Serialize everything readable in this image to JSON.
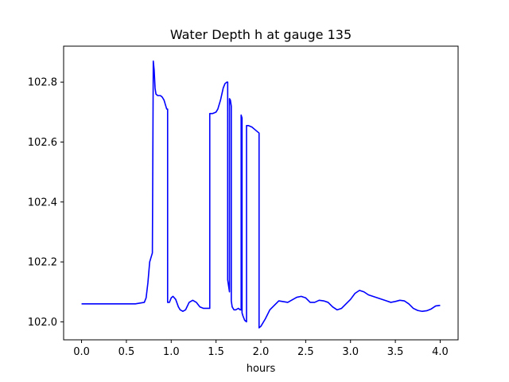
{
  "chart_data": {
    "type": "line",
    "title": "Water Depth h at gauge 135",
    "xlabel": "hours",
    "ylabel": "",
    "xlim": [
      -0.2,
      4.2
    ],
    "ylim": [
      101.94,
      102.92
    ],
    "xticks": [
      0.0,
      0.5,
      1.0,
      1.5,
      2.0,
      2.5,
      3.0,
      3.5,
      4.0
    ],
    "xtick_labels": [
      "0.0",
      "0.5",
      "1.0",
      "1.5",
      "2.0",
      "2.5",
      "3.0",
      "3.5",
      "4.0"
    ],
    "yticks": [
      102.0,
      102.2,
      102.4,
      102.6,
      102.8
    ],
    "ytick_labels": [
      "102.0",
      "102.2",
      "102.4",
      "102.6",
      "102.8"
    ],
    "grid": false,
    "series": [
      {
        "color": "#0000ff",
        "x": [
          0.0,
          0.2,
          0.4,
          0.6,
          0.7,
          0.72,
          0.74,
          0.76,
          0.78,
          0.79,
          0.8,
          0.8,
          0.81,
          0.82,
          0.83,
          0.85,
          0.88,
          0.9,
          0.92,
          0.94,
          0.95,
          0.96,
          0.96,
          0.97,
          0.98,
          1.0,
          1.02,
          1.05,
          1.08,
          1.1,
          1.13,
          1.16,
          1.2,
          1.24,
          1.28,
          1.32,
          1.36,
          1.4,
          1.43,
          1.43,
          1.46,
          1.5,
          1.52,
          1.55,
          1.58,
          1.6,
          1.62,
          1.63,
          1.63,
          1.64,
          1.65,
          1.65,
          1.66,
          1.67,
          1.67,
          1.68,
          1.7,
          1.72,
          1.75,
          1.77,
          1.78,
          1.78,
          1.79,
          1.79,
          1.8,
          1.82,
          1.84,
          1.84,
          1.86,
          1.9,
          1.94,
          1.96,
          1.98,
          1.98,
          2.0,
          2.05,
          2.1,
          2.15,
          2.2,
          2.3,
          2.4,
          2.45,
          2.5,
          2.55,
          2.6,
          2.65,
          2.7,
          2.75,
          2.8,
          2.85,
          2.9,
          2.95,
          3.0,
          3.05,
          3.1,
          3.15,
          3.2,
          3.3,
          3.4,
          3.45,
          3.5,
          3.55,
          3.6,
          3.65,
          3.7,
          3.75,
          3.8,
          3.85,
          3.9,
          3.95,
          4.0
        ],
        "y": [
          102.06,
          102.06,
          102.06,
          102.06,
          102.065,
          102.08,
          102.13,
          102.2,
          102.22,
          102.23,
          102.87,
          102.87,
          102.84,
          102.78,
          102.76,
          102.755,
          102.755,
          102.75,
          102.74,
          102.72,
          102.71,
          102.71,
          102.065,
          102.065,
          102.065,
          102.08,
          102.085,
          102.075,
          102.05,
          102.04,
          102.035,
          102.04,
          102.065,
          102.072,
          102.065,
          102.05,
          102.045,
          102.045,
          102.045,
          102.695,
          102.695,
          102.7,
          102.71,
          102.74,
          102.78,
          102.795,
          102.8,
          102.8,
          102.14,
          102.12,
          102.1,
          102.745,
          102.74,
          102.72,
          102.07,
          102.05,
          102.04,
          102.04,
          102.045,
          102.04,
          102.04,
          102.69,
          102.68,
          102.03,
          102.02,
          102.005,
          102.0,
          102.655,
          102.655,
          102.65,
          102.64,
          102.635,
          102.63,
          101.98,
          101.985,
          102.01,
          102.04,
          102.055,
          102.07,
          102.065,
          102.082,
          102.085,
          102.08,
          102.065,
          102.065,
          102.072,
          102.07,
          102.065,
          102.05,
          102.04,
          102.045,
          102.06,
          102.075,
          102.095,
          102.105,
          102.1,
          102.09,
          102.08,
          102.07,
          102.065,
          102.068,
          102.072,
          102.07,
          102.06,
          102.045,
          102.038,
          102.035,
          102.037,
          102.043,
          102.053,
          102.055
        ]
      }
    ]
  }
}
